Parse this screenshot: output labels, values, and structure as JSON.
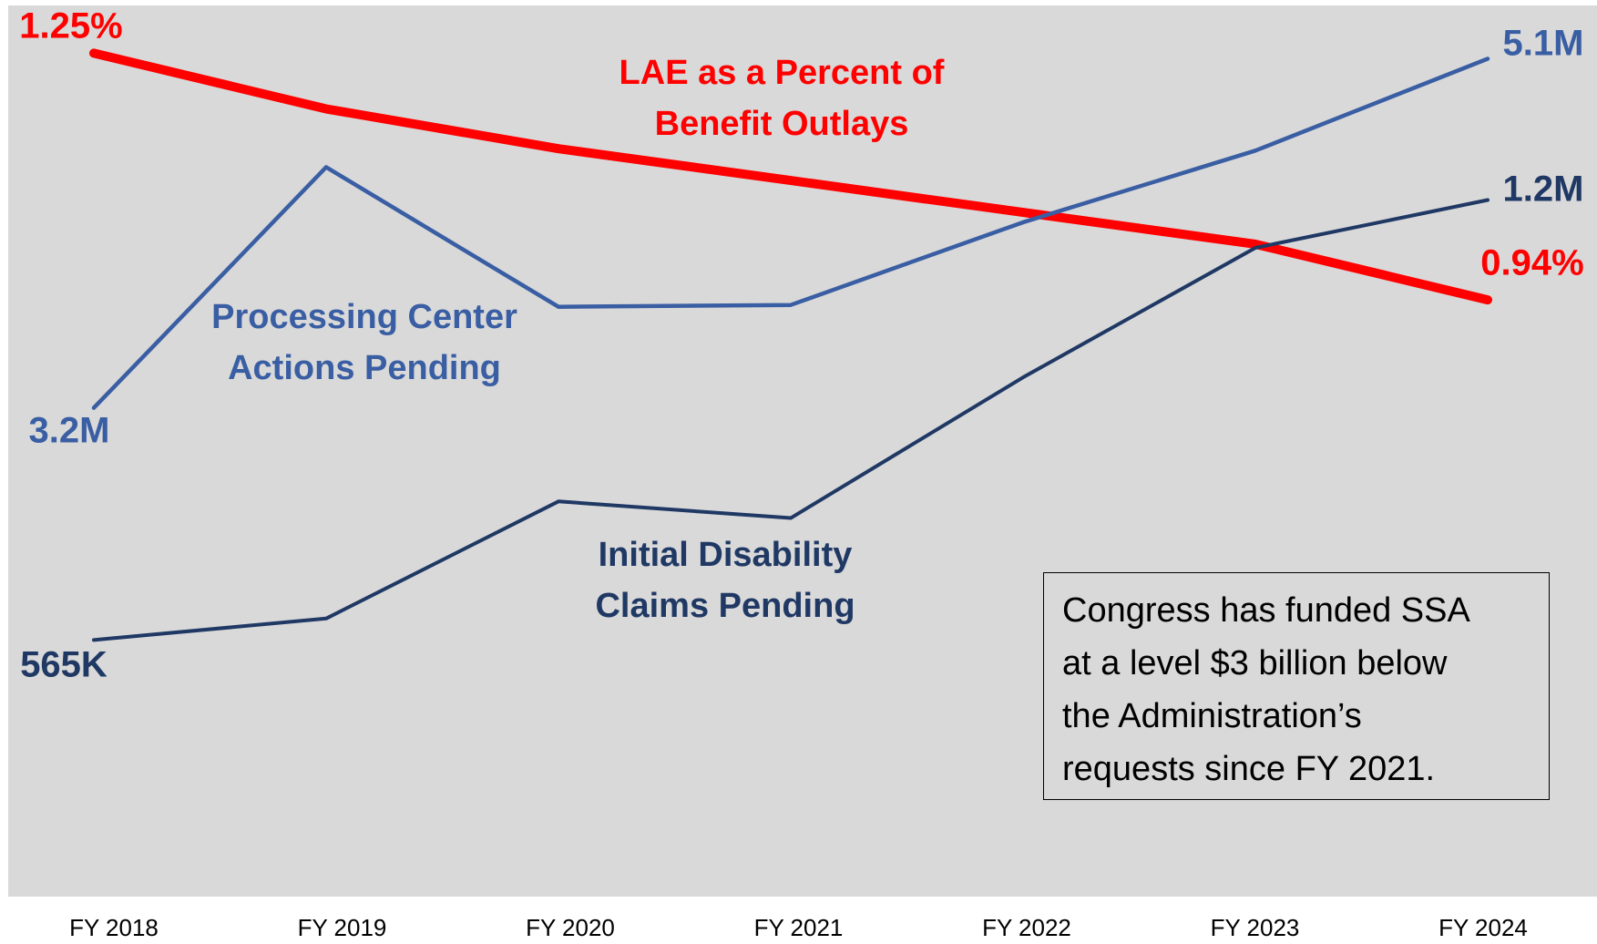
{
  "chart_data": {
    "type": "line",
    "categories": [
      "FY 2018",
      "FY 2019",
      "FY 2020",
      "FY 2021",
      "FY 2022",
      "FY 2023",
      "FY 2024"
    ],
    "series": [
      {
        "name": "LAE as a Percent of\nBenefit Outlays",
        "color": "#ff0000",
        "values": [
          1.25,
          1.18,
          1.13,
          1.09,
          1.05,
          1.01,
          0.94
        ],
        "value_labels": [
          "1.25%",
          null,
          null,
          null,
          null,
          null,
          "0.94%"
        ],
        "ylim": [
          0.19,
          1.31
        ]
      },
      {
        "name": "Processing Center\nActions Pending",
        "color": "#3a5ea3",
        "values": [
          3200000,
          4510000,
          3750000,
          3760000,
          4210000,
          4600000,
          5100000
        ],
        "value_labels": [
          "3.2M",
          null,
          null,
          null,
          null,
          null,
          "5.1M"
        ],
        "ylim": [
          540000,
          5390000
        ]
      },
      {
        "name": "Initial Disability\nClaims Pending",
        "color": "#1f3864",
        "values": [
          565000,
          596000,
          765000,
          741000,
          944000,
          1131000,
          1200000
        ],
        "value_labels": [
          "565K",
          null,
          null,
          null,
          null,
          null,
          "1.2M"
        ],
        "ylim": [
          194600,
          1480800
        ]
      }
    ],
    "annotations": [
      "Congress has funded SSA\nat a level $3 billion below\nthe Administration’s\nrequests since FY 2021."
    ]
  }
}
